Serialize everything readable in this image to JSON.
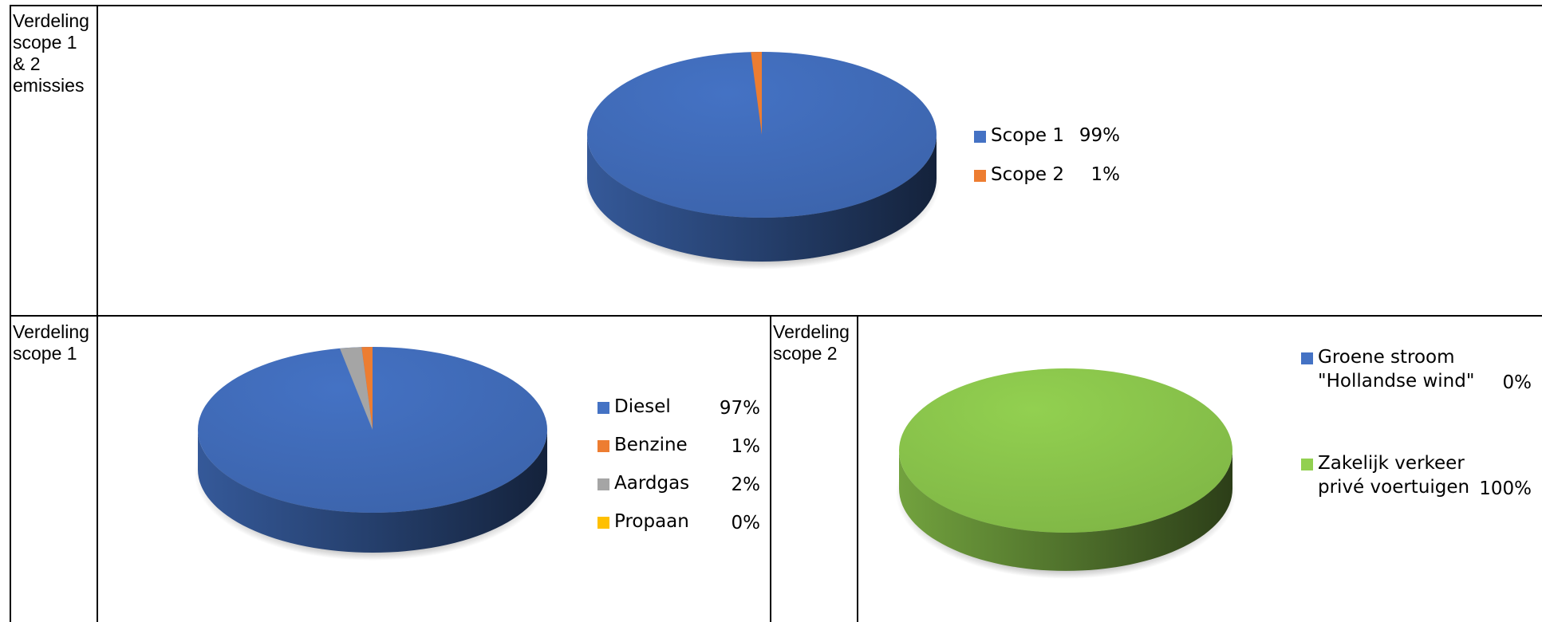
{
  "labels": {
    "top": [
      "Verdeling",
      "scope 1",
      "& 2",
      "emissies"
    ],
    "bottom_left": [
      "Verdeling",
      "scope 1"
    ],
    "bottom_right": [
      "Verdeling",
      "scope 2"
    ]
  },
  "chart_data": [
    {
      "type": "pie",
      "labels": [
        "Scope 1",
        "Scope 2"
      ],
      "values": [
        99,
        1
      ],
      "value_labels": [
        "99%",
        "1%"
      ],
      "colors": [
        "#4472C4",
        "#ED7D31"
      ],
      "style": "3d",
      "legend": "right"
    },
    {
      "type": "pie",
      "labels": [
        "Diesel",
        "Benzine",
        "Aardgas",
        "Propaan"
      ],
      "values": [
        97,
        1,
        2,
        0
      ],
      "value_labels": [
        "97%",
        "1%",
        "2%",
        "0%"
      ],
      "colors": [
        "#4472C4",
        "#ED7D31",
        "#A5A5A5",
        "#FFC000"
      ],
      "style": "3d",
      "legend": "right"
    },
    {
      "type": "pie",
      "labels": [
        [
          "Groene stroom",
          "\"Hollandse wind\""
        ],
        [
          "Zakelijk verkeer",
          "privé voertuigen"
        ]
      ],
      "values": [
        0,
        100
      ],
      "value_labels": [
        "0%",
        "100%"
      ],
      "colors": [
        "#4472C4",
        "#92D050"
      ],
      "style": "3d",
      "legend": "right"
    }
  ]
}
